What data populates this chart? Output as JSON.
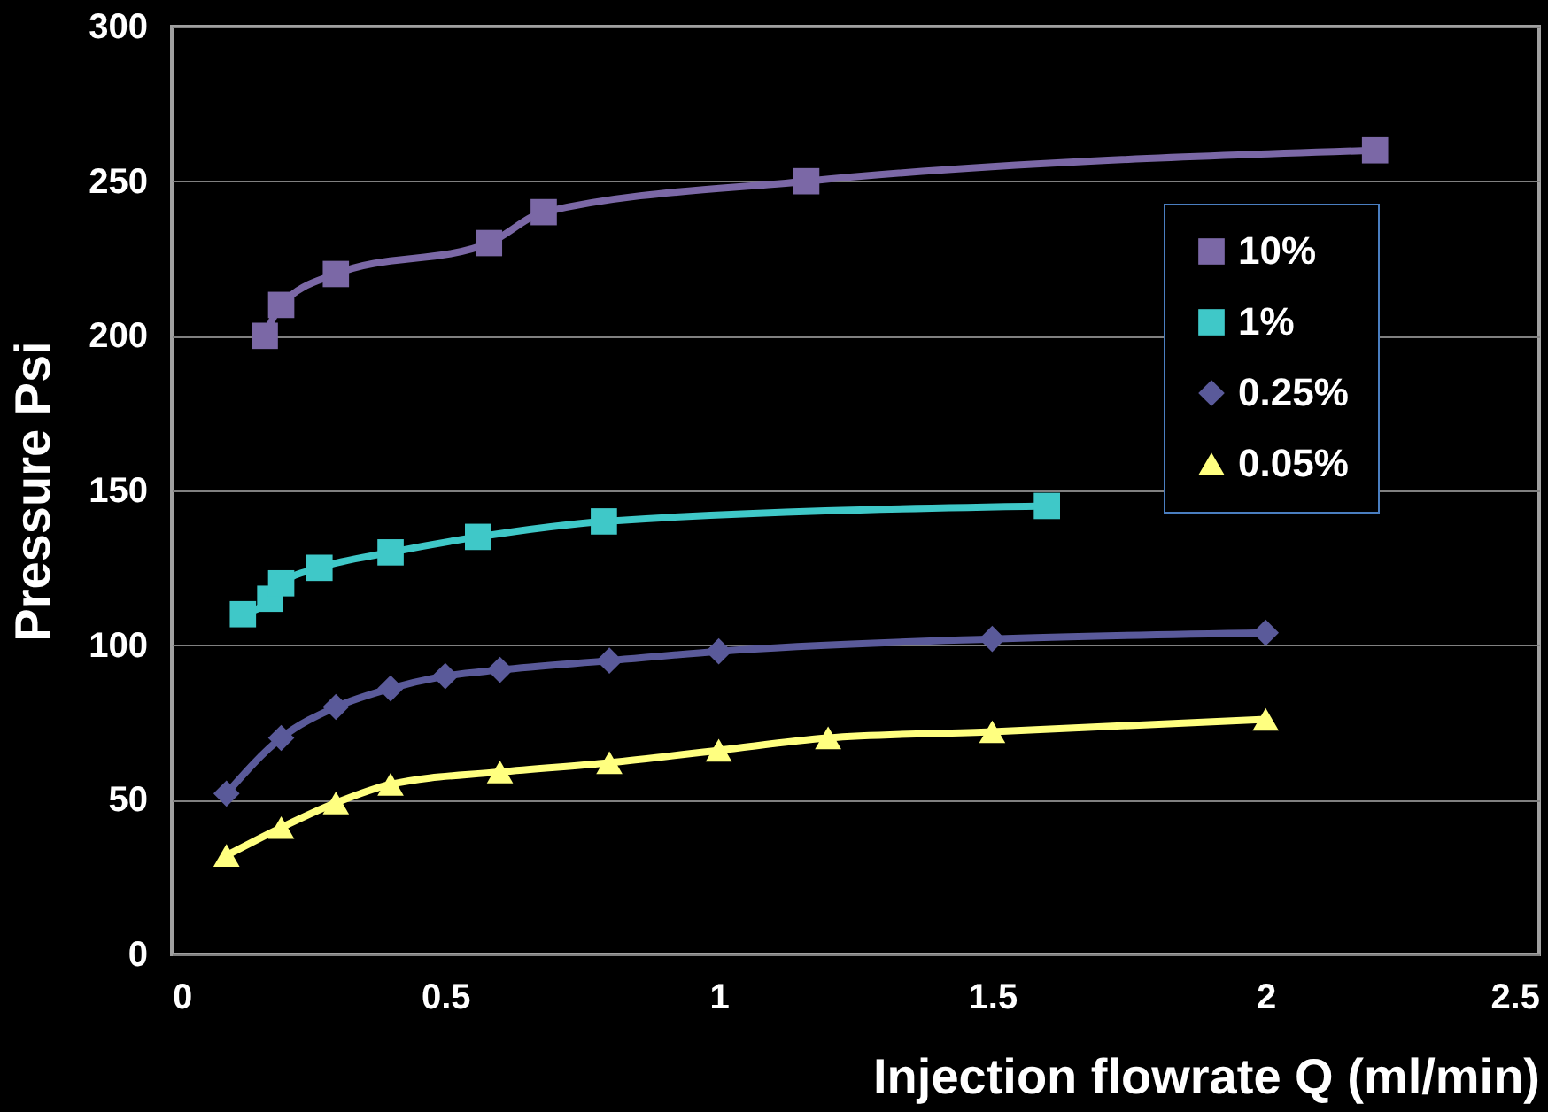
{
  "chart_data": {
    "type": "line",
    "xlabel": "Injection flowrate Q (ml/min)",
    "ylabel": "Pressure Psi",
    "xlim": [
      0,
      2.5
    ],
    "xticks": [
      0,
      0.5,
      1,
      1.5,
      2,
      2.5
    ],
    "ylim": [
      0,
      300
    ],
    "yticks": [
      0,
      50,
      100,
      150,
      200,
      250,
      300
    ],
    "grid": "y",
    "legend": "top right",
    "line_style": "solid",
    "series": [
      {
        "name": "10%",
        "color": "#7b68a6",
        "marker": "square",
        "x": [
          0.17,
          0.2,
          0.3,
          0.58,
          0.68,
          1.16,
          2.2
        ],
        "values": [
          200,
          210,
          220,
          230,
          240,
          250,
          260
        ]
      },
      {
        "name": "1%",
        "color": "#3fc8c8",
        "marker": "square",
        "x": [
          0.13,
          0.18,
          0.2,
          0.27,
          0.4,
          0.56,
          0.79,
          1.6
        ],
        "values": [
          110,
          115,
          120,
          125,
          130,
          135,
          140,
          145
        ]
      },
      {
        "name": "0.25%",
        "color": "#5a5a9a",
        "marker": "diamond",
        "x": [
          0.1,
          0.2,
          0.3,
          0.4,
          0.5,
          0.6,
          0.8,
          1.0,
          1.5,
          2.0
        ],
        "values": [
          52,
          70,
          80,
          86,
          90,
          92,
          95,
          98,
          102,
          104
        ]
      },
      {
        "name": "0.05%",
        "color": "#ffff80",
        "marker": "triangle",
        "x": [
          0.1,
          0.2,
          0.3,
          0.4,
          0.6,
          0.8,
          1.0,
          1.2,
          1.5,
          2.0
        ],
        "values": [
          32,
          41,
          49,
          55,
          59,
          62,
          66,
          70,
          72,
          76
        ]
      }
    ]
  }
}
